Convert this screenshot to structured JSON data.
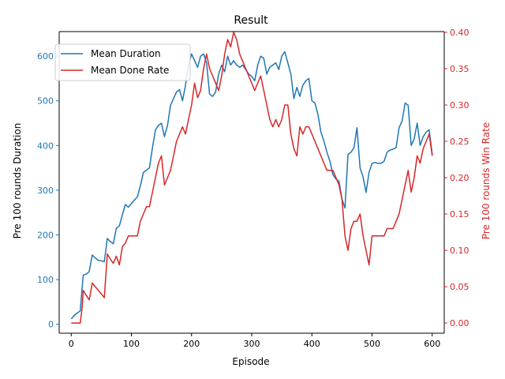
{
  "chart_data": {
    "type": "line",
    "title": "Result",
    "xlabel": "Episode",
    "ylabel_left": "Pre 100 rounds Duration",
    "ylabel_right": "Pre 100 rounds Win Rate",
    "xlim": [
      -20,
      620
    ],
    "ylim_left": [
      -20,
      655
    ],
    "ylim_right": [
      -0.014,
      0.401
    ],
    "x_ticks": [
      0,
      100,
      200,
      300,
      400,
      500,
      600
    ],
    "y_ticks_left": [
      0,
      100,
      200,
      300,
      400,
      500,
      600
    ],
    "y_ticks_right": [
      0.0,
      0.05,
      0.1,
      0.15,
      0.2,
      0.25,
      0.3,
      0.35,
      0.4
    ],
    "grid": false,
    "legend_position": "upper-left",
    "colors": {
      "left_axis": "#1f77b4",
      "right_axis": "#d62728",
      "duration_line": "#1f77b4",
      "done_rate_line": "#d62728"
    },
    "series": [
      {
        "name": "Mean Duration",
        "axis": "left",
        "x": [
          0,
          5,
          10,
          15,
          18,
          20,
          25,
          30,
          35,
          40,
          45,
          50,
          55,
          60,
          65,
          70,
          75,
          80,
          85,
          90,
          95,
          100,
          105,
          110,
          115,
          120,
          125,
          130,
          135,
          140,
          145,
          150,
          155,
          160,
          165,
          170,
          175,
          180,
          185,
          190,
          195,
          200,
          205,
          210,
          215,
          220,
          225,
          230,
          235,
          240,
          245,
          250,
          255,
          260,
          265,
          270,
          275,
          280,
          285,
          290,
          295,
          300,
          305,
          310,
          315,
          320,
          325,
          330,
          335,
          340,
          345,
          350,
          355,
          360,
          365,
          370,
          375,
          380,
          385,
          390,
          395,
          400,
          405,
          410,
          415,
          420,
          425,
          430,
          435,
          440,
          445,
          450,
          455,
          460,
          465,
          470,
          475,
          480,
          485,
          490,
          495,
          500,
          505,
          510,
          515,
          520,
          525,
          530,
          535,
          540,
          545,
          550,
          555,
          560,
          565,
          570,
          575,
          580,
          585,
          590,
          595,
          600
        ],
        "y": [
          12,
          20,
          25,
          30,
          80,
          110,
          112,
          118,
          155,
          148,
          143,
          142,
          140,
          192,
          185,
          180,
          215,
          220,
          245,
          268,
          262,
          270,
          278,
          285,
          310,
          340,
          345,
          350,
          395,
          435,
          445,
          450,
          420,
          445,
          490,
          505,
          520,
          525,
          500,
          535,
          580,
          605,
          590,
          575,
          600,
          605,
          585,
          515,
          510,
          520,
          560,
          580,
          565,
          600,
          580,
          590,
          580,
          575,
          580,
          570,
          560,
          555,
          545,
          580,
          600,
          595,
          560,
          575,
          580,
          585,
          570,
          600,
          610,
          585,
          560,
          505,
          530,
          510,
          535,
          545,
          550,
          500,
          495,
          470,
          430,
          410,
          385,
          365,
          335,
          325,
          320,
          280,
          260,
          380,
          385,
          395,
          440,
          350,
          330,
          295,
          340,
          360,
          362,
          360,
          360,
          365,
          385,
          390,
          392,
          395,
          440,
          455,
          495,
          490,
          400,
          415,
          450,
          400,
          420,
          430,
          435,
          380
        ]
      },
      {
        "name": "Mean Done Rate",
        "axis": "right",
        "x": [
          0,
          5,
          10,
          15,
          18,
          20,
          25,
          30,
          35,
          40,
          45,
          50,
          55,
          60,
          65,
          70,
          75,
          80,
          85,
          90,
          95,
          100,
          105,
          110,
          115,
          120,
          125,
          130,
          135,
          140,
          145,
          150,
          155,
          160,
          165,
          170,
          175,
          180,
          185,
          190,
          195,
          200,
          205,
          210,
          215,
          220,
          225,
          230,
          235,
          240,
          245,
          250,
          255,
          260,
          265,
          270,
          275,
          280,
          285,
          290,
          295,
          300,
          305,
          310,
          315,
          320,
          325,
          330,
          335,
          340,
          345,
          350,
          355,
          360,
          365,
          370,
          375,
          380,
          385,
          390,
          395,
          400,
          405,
          410,
          415,
          420,
          425,
          430,
          435,
          440,
          445,
          450,
          455,
          460,
          465,
          470,
          475,
          480,
          485,
          490,
          495,
          500,
          505,
          510,
          515,
          520,
          525,
          530,
          535,
          540,
          545,
          550,
          555,
          560,
          565,
          570,
          575,
          580,
          585,
          590,
          595,
          600
        ],
        "y": [
          0.0,
          0.0,
          0.0,
          0.0,
          0.02,
          0.045,
          0.038,
          0.032,
          0.055,
          0.05,
          0.045,
          0.04,
          0.035,
          0.095,
          0.088,
          0.082,
          0.092,
          0.08,
          0.105,
          0.11,
          0.12,
          0.12,
          0.12,
          0.12,
          0.14,
          0.15,
          0.16,
          0.16,
          0.18,
          0.2,
          0.22,
          0.23,
          0.19,
          0.2,
          0.21,
          0.23,
          0.25,
          0.26,
          0.27,
          0.26,
          0.28,
          0.3,
          0.33,
          0.31,
          0.32,
          0.35,
          0.37,
          0.35,
          0.34,
          0.33,
          0.32,
          0.34,
          0.37,
          0.39,
          0.38,
          0.4,
          0.39,
          0.37,
          0.36,
          0.35,
          0.34,
          0.33,
          0.32,
          0.33,
          0.34,
          0.32,
          0.3,
          0.28,
          0.27,
          0.28,
          0.27,
          0.28,
          0.3,
          0.3,
          0.26,
          0.24,
          0.23,
          0.27,
          0.26,
          0.27,
          0.27,
          0.26,
          0.25,
          0.24,
          0.23,
          0.22,
          0.21,
          0.21,
          0.21,
          0.2,
          0.19,
          0.17,
          0.12,
          0.1,
          0.13,
          0.14,
          0.14,
          0.15,
          0.12,
          0.1,
          0.08,
          0.12,
          0.12,
          0.12,
          0.12,
          0.12,
          0.13,
          0.13,
          0.13,
          0.14,
          0.15,
          0.17,
          0.19,
          0.21,
          0.18,
          0.2,
          0.23,
          0.22,
          0.24,
          0.25,
          0.26,
          0.23
        ]
      }
    ]
  }
}
